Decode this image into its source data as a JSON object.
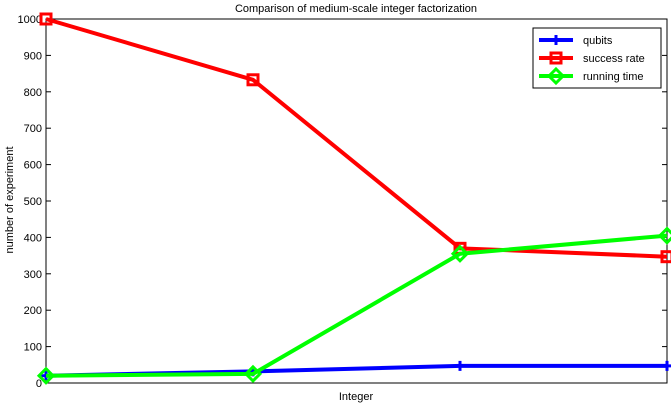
{
  "chart_data": {
    "type": "line",
    "title": "Comparison of medium-scale integer factorization",
    "xlabel": "Integer",
    "ylabel": "number of experiment",
    "xlim": [
      1,
      4
    ],
    "ylim": [
      0,
      1000
    ],
    "yticks": [
      0,
      100,
      200,
      300,
      400,
      500,
      600,
      700,
      800,
      900,
      1000
    ],
    "xticks": [],
    "grid": false,
    "legend_position": "top-right",
    "x": [
      1,
      2,
      3,
      4
    ],
    "series": [
      {
        "name": "qubits",
        "color": "#0000ff",
        "marker": "plus",
        "values": [
          20,
          32,
          47,
          47
        ]
      },
      {
        "name": "success rate",
        "color": "#ff0000",
        "marker": "square",
        "values": [
          1000,
          833,
          370,
          347
        ]
      },
      {
        "name": "running time",
        "color": "#00ff00",
        "marker": "diamond",
        "values": [
          20,
          25,
          355,
          405
        ]
      }
    ]
  }
}
